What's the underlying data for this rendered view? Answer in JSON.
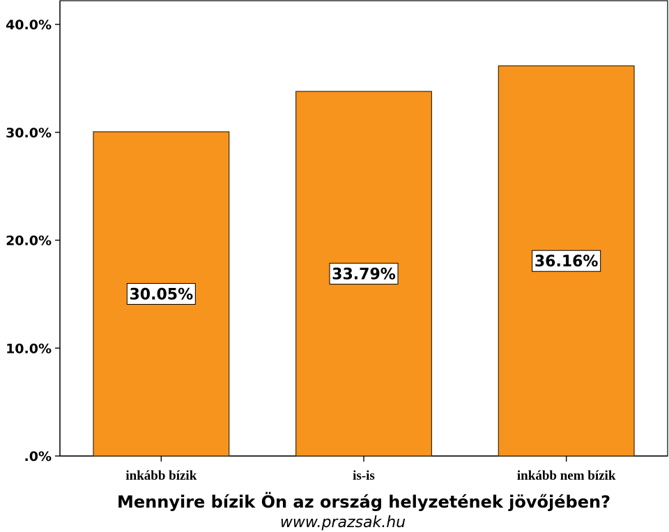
{
  "chart_data": {
    "type": "bar",
    "categories": [
      "inkább bízik",
      "is-is",
      "inkább nem bízik"
    ],
    "values": [
      30.05,
      33.79,
      36.16
    ],
    "value_labels": [
      "30.05%",
      "33.79%",
      "36.16%"
    ],
    "y_ticks": [
      0,
      10,
      20,
      30,
      40
    ],
    "y_tick_labels": [
      ".0%",
      "10.0%",
      "20.0%",
      "30.0%",
      "40.0%"
    ],
    "ylim": [
      0,
      40
    ],
    "xlabel": "Mennyire bízik Ön az ország helyzetének jövőjében?",
    "ylabel": "",
    "grid": false,
    "bar_color": "#f7941d",
    "bar_edge_color": "#3a2a10"
  },
  "source_text": "www.prazsak.hu"
}
